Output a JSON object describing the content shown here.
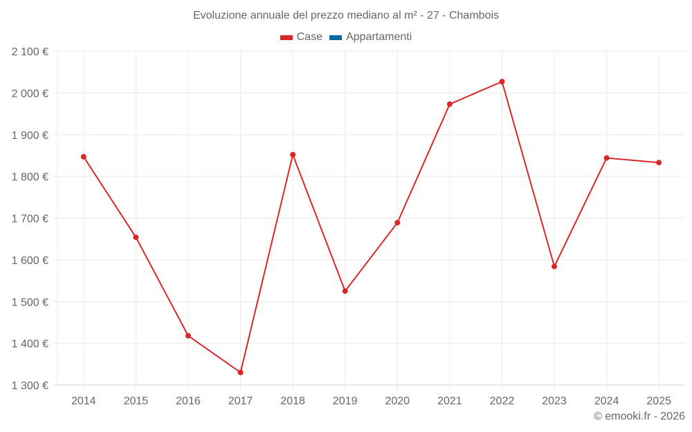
{
  "title": "Evoluzione annuale del prezzo mediano al m² - 27 - Chambois",
  "legend": [
    {
      "label": "Case",
      "color": "#dc2626"
    },
    {
      "label": "Appartamenti",
      "color": "#0369a1"
    }
  ],
  "footer": "© emooki.fr - 2026",
  "chart_data": {
    "type": "line",
    "title": "Evoluzione annuale del prezzo mediano al m² - 27 - Chambois",
    "xlabel": "",
    "ylabel": "",
    "categories": [
      "2014",
      "2015",
      "2016",
      "2017",
      "2018",
      "2019",
      "2020",
      "2021",
      "2022",
      "2023",
      "2024",
      "2025"
    ],
    "series": [
      {
        "name": "Case",
        "color": "#dc2626",
        "values": [
          1847,
          1654,
          1418,
          1330,
          1852,
          1525,
          1689,
          1973,
          2027,
          1584,
          1844,
          1833
        ]
      },
      {
        "name": "Appartamenti",
        "color": "#0369a1",
        "values": []
      }
    ],
    "ylim": [
      1300,
      2100
    ],
    "yticks": [
      1300,
      1400,
      1500,
      1600,
      1700,
      1800,
      1900,
      2000,
      2100
    ],
    "ytick_labels": [
      "1 300 €",
      "1 400 €",
      "1 500 €",
      "1 600 €",
      "1 700 €",
      "1 800 €",
      "1 900 €",
      "2 000 €",
      "2 100 €"
    ],
    "grid": true,
    "legend_position": "top"
  }
}
